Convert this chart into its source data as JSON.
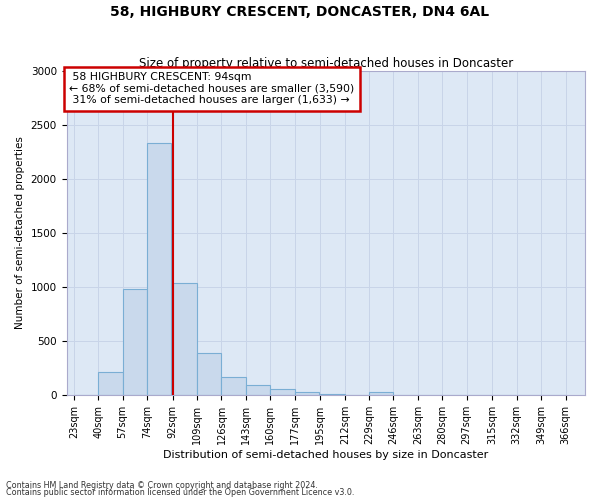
{
  "title": "58, HIGHBURY CRESCENT, DONCASTER, DN4 6AL",
  "subtitle": "Size of property relative to semi-detached houses in Doncaster",
  "xlabel": "Distribution of semi-detached houses by size in Doncaster",
  "ylabel": "Number of semi-detached properties",
  "footnote1": "Contains HM Land Registry data © Crown copyright and database right 2024.",
  "footnote2": "Contains public sector information licensed under the Open Government Licence v3.0.",
  "property_label": "58 HIGHBURY CRESCENT: 94sqm",
  "pct_smaller": 68,
  "n_smaller": 3590,
  "pct_larger": 31,
  "n_larger": 1633,
  "bin_labels": [
    "23sqm",
    "40sqm",
    "57sqm",
    "74sqm",
    "92sqm",
    "109sqm",
    "126sqm",
    "143sqm",
    "160sqm",
    "177sqm",
    "195sqm",
    "212sqm",
    "229sqm",
    "246sqm",
    "263sqm",
    "280sqm",
    "297sqm",
    "315sqm",
    "332sqm",
    "349sqm",
    "366sqm"
  ],
  "bin_edges": [
    23,
    40,
    57,
    74,
    92,
    109,
    126,
    143,
    160,
    177,
    195,
    212,
    229,
    246,
    263,
    280,
    297,
    315,
    332,
    349,
    366
  ],
  "bar_values": [
    5,
    220,
    980,
    2330,
    1040,
    390,
    170,
    95,
    55,
    28,
    10,
    5,
    30,
    5,
    3,
    1,
    0,
    0,
    0,
    0
  ],
  "bar_color": "#c9d9ec",
  "bar_edge_color": "#7aaed4",
  "red_line_x": 92,
  "annotation_box_color": "#cc0000",
  "ax_bg_color": "#dde8f5",
  "grid_color": "#c8d4e8",
  "ylim": [
    0,
    3000
  ],
  "yticks": [
    0,
    500,
    1000,
    1500,
    2000,
    2500,
    3000
  ]
}
